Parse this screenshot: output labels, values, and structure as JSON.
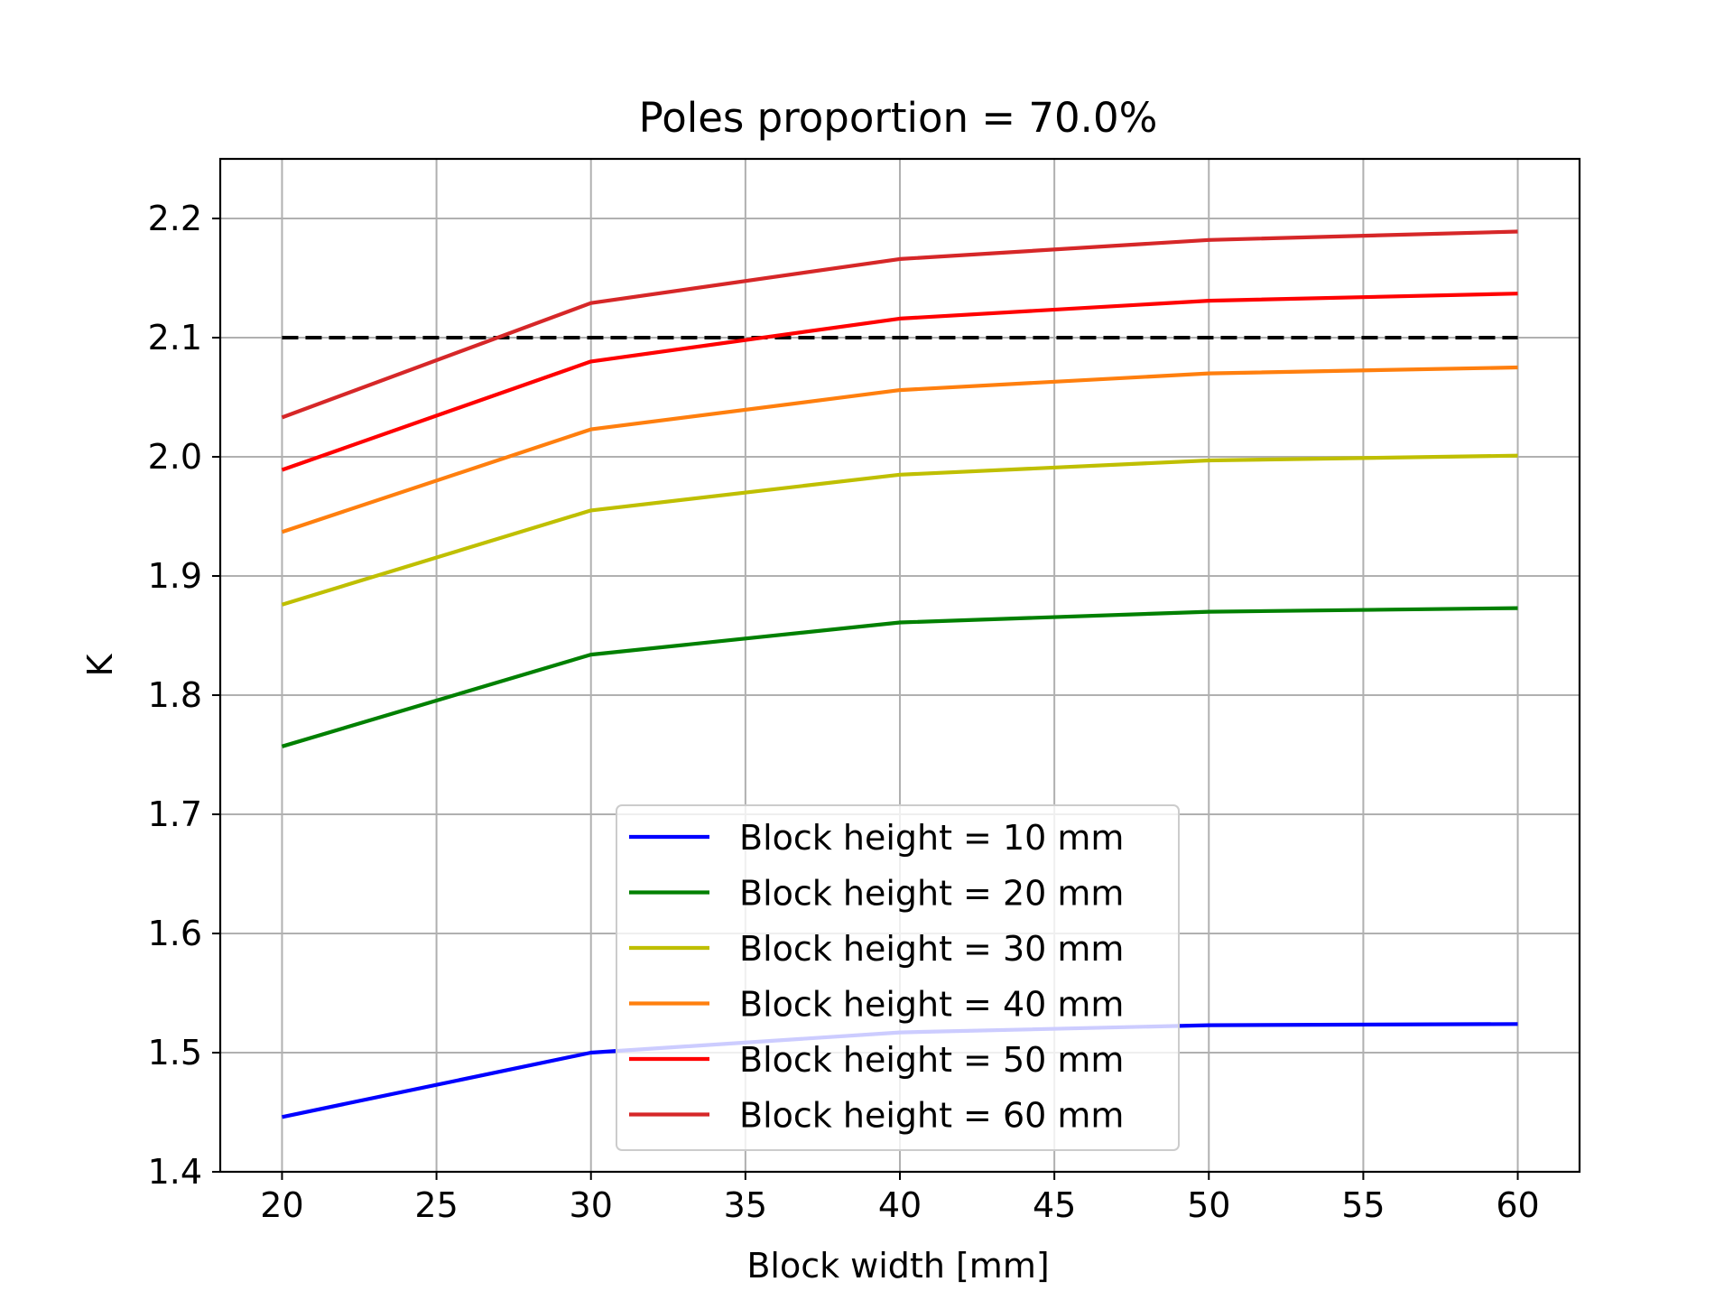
{
  "chart_data": {
    "type": "line",
    "title": "Poles proportion = 70.0%",
    "xlabel": "Block width [mm]",
    "ylabel": "K",
    "xlim": [
      18,
      62
    ],
    "ylim": [
      1.4,
      2.25
    ],
    "xticks": [
      20,
      25,
      30,
      35,
      40,
      45,
      50,
      55,
      60
    ],
    "yticks": [
      1.4,
      1.5,
      1.6,
      1.7,
      1.8,
      1.9,
      2.0,
      2.1,
      2.2
    ],
    "ytick_labels": [
      "1.4",
      "1.5",
      "1.6",
      "1.7",
      "1.8",
      "1.9",
      "2.0",
      "2.1",
      "2.2"
    ],
    "grid": true,
    "legend_position": "lower center",
    "x": [
      20,
      30,
      40,
      50,
      60
    ],
    "series": [
      {
        "name": "Block height = 10 mm",
        "color": "#0000ff",
        "values": [
          1.446,
          1.5,
          1.517,
          1.523,
          1.524
        ]
      },
      {
        "name": "Block height = 20 mm",
        "color": "#008000",
        "values": [
          1.757,
          1.834,
          1.861,
          1.87,
          1.873
        ]
      },
      {
        "name": "Block height = 30 mm",
        "color": "#bfbf00",
        "values": [
          1.876,
          1.955,
          1.985,
          1.997,
          2.001
        ]
      },
      {
        "name": "Block height = 40 mm",
        "color": "#ff7f0e",
        "values": [
          1.937,
          2.023,
          2.056,
          2.07,
          2.075
        ]
      },
      {
        "name": "Block height = 50 mm",
        "color": "#ff0000",
        "values": [
          1.989,
          2.08,
          2.116,
          2.131,
          2.137
        ]
      },
      {
        "name": "Block height = 60 mm",
        "color": "#d62728",
        "values": [
          2.033,
          2.129,
          2.166,
          2.182,
          2.189
        ]
      }
    ],
    "reference_line": {
      "y": 2.1,
      "x_range": [
        20,
        60
      ],
      "color": "#000000",
      "style": "dashed"
    }
  }
}
